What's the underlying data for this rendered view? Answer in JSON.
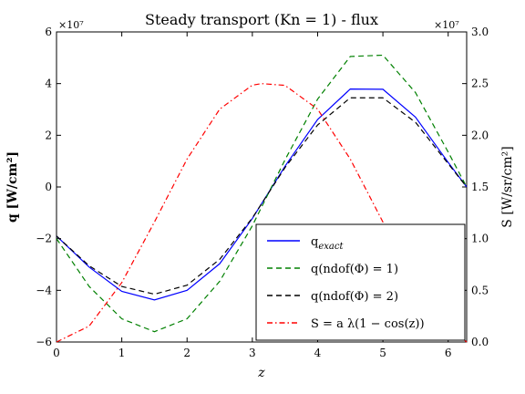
{
  "chart_data": {
    "type": "line",
    "title": "Steady transport (Kn = 1) - flux",
    "xlabel": "z",
    "ylabel_left": "q [W/cm²]",
    "ylabel_right": "S [W/sr/cm²]",
    "xlim": [
      0,
      6.2832
    ],
    "ylim_left": [
      -6,
      6
    ],
    "ylim_right": [
      0.0,
      3.0
    ],
    "left_scale_label": "×10⁷",
    "right_scale_label": "×10⁷",
    "xticks": [
      "0",
      "1",
      "2",
      "3",
      "4",
      "5",
      "6"
    ],
    "yticks_left": [
      "−6",
      "−4",
      "−2",
      "0",
      "2",
      "4",
      "6"
    ],
    "yticks_right": [
      "0.0",
      "0.5",
      "1.0",
      "1.5",
      "2.0",
      "2.5",
      "3.0"
    ],
    "legend_position": "lower-right",
    "series": [
      {
        "name": "q_exact",
        "axis": "left",
        "color": "#0000ff",
        "dash": "solid",
        "x": [
          0,
          0.5,
          1.0,
          1.5,
          2.0,
          2.5,
          3.0,
          3.5,
          4.0,
          4.5,
          5.0,
          5.5,
          6.0,
          6.2832
        ],
        "y": [
          -1.9,
          -3.1,
          -4.04,
          -4.37,
          -4.0,
          -2.97,
          -1.22,
          0.8,
          2.61,
          3.79,
          3.78,
          2.7,
          0.95,
          0.0
        ]
      },
      {
        "name": "q(ndof(Φ) = 1)",
        "axis": "left",
        "color": "#008000",
        "dash": "dashed",
        "x": [
          0,
          0.5,
          1.0,
          1.5,
          2.0,
          2.5,
          3.0,
          3.5,
          4.0,
          4.5,
          5.0,
          5.5,
          6.0,
          6.2832
        ],
        "y": [
          -2.0,
          -3.85,
          -5.1,
          -5.6,
          -5.1,
          -3.65,
          -1.5,
          1.05,
          3.4,
          5.05,
          5.1,
          3.65,
          1.35,
          0.0
        ]
      },
      {
        "name": "q(ndof(Φ) = 2)",
        "axis": "left",
        "color": "#000000",
        "dash": "dashed",
        "x": [
          0,
          0.5,
          1.0,
          1.5,
          2.0,
          2.5,
          3.0,
          3.5,
          4.0,
          4.5,
          5.0,
          5.5,
          6.0,
          6.2832
        ],
        "y": [
          -1.9,
          -3.05,
          -3.85,
          -4.15,
          -3.8,
          -2.8,
          -1.2,
          0.75,
          2.4,
          3.45,
          3.45,
          2.5,
          0.9,
          0.0
        ]
      },
      {
        "name": "S = a λ(1 − cos(z))",
        "axis": "right",
        "color": "#ff0000",
        "dash": "dashdot",
        "x": [
          0,
          0.5,
          1.0,
          1.5,
          2.0,
          2.5,
          3.0,
          3.1416,
          3.5,
          4.0,
          4.5,
          5.0,
          5.5,
          6.0,
          6.2832
        ],
        "y": [
          0.0,
          0.154,
          0.575,
          1.161,
          1.77,
          2.253,
          2.485,
          2.5,
          2.483,
          2.253,
          1.77,
          1.161,
          0.575,
          0.154,
          0.0
        ]
      }
    ],
    "legend": [
      {
        "label_main": "q",
        "label_sub": "exact",
        "color": "#0000ff",
        "dash": "solid"
      },
      {
        "label_main": "q(ndof(Φ) = 1)",
        "label_sub": "",
        "color": "#008000",
        "dash": "dashed"
      },
      {
        "label_main": "q(ndof(Φ) = 2)",
        "label_sub": "",
        "color": "#000000",
        "dash": "dashed"
      },
      {
        "label_main": "S = a λ(1 − cos(z))",
        "label_sub": "",
        "color": "#ff0000",
        "dash": "dashdot"
      }
    ]
  }
}
